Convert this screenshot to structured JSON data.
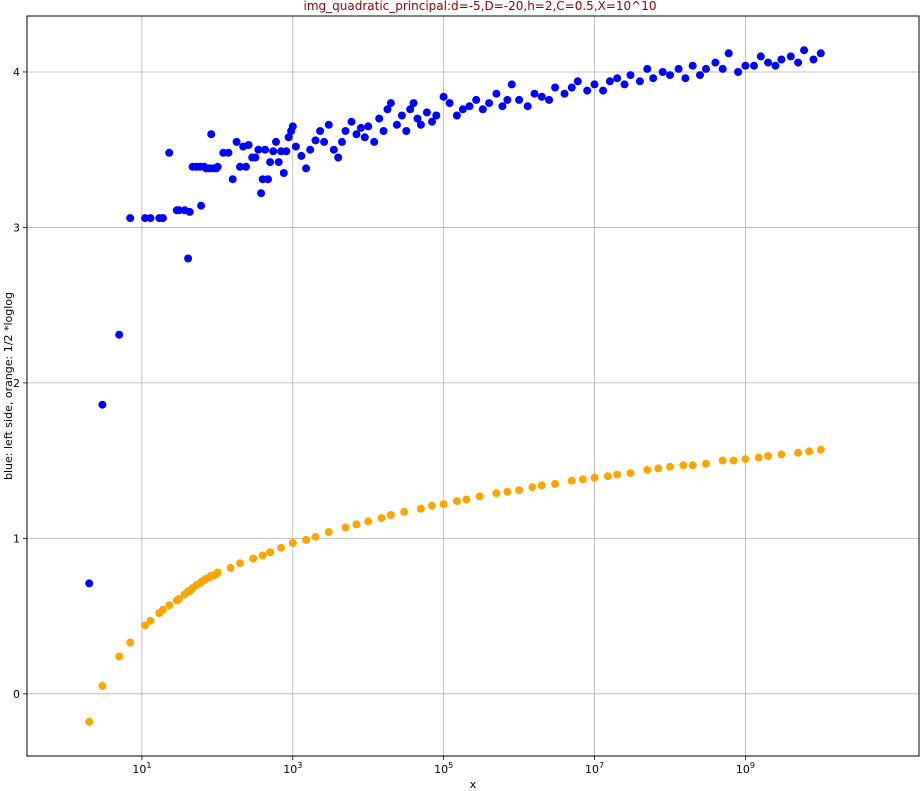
{
  "chart_data": {
    "type": "scatter",
    "title": "img_quadratic_principal:d=-5,D=-20,h=2,C=0.5,X=10^10",
    "title_color": "#8b0000",
    "xlabel": "x",
    "ylabel": "blue: left side, orange: 1/2 *loglog",
    "xscale": "log",
    "xlim": [
      0.3,
      200000000000
    ],
    "ylim": [
      -0.4,
      4.36
    ],
    "grid": true,
    "x_ticks": [
      {
        "value": 10,
        "base": "10",
        "exp": "1"
      },
      {
        "value": 1000,
        "base": "10",
        "exp": "3"
      },
      {
        "value": 100000,
        "base": "10",
        "exp": "5"
      },
      {
        "value": 10000000,
        "base": "10",
        "exp": "7"
      },
      {
        "value": 1000000000,
        "base": "10",
        "exp": "9"
      }
    ],
    "y_ticks": [
      {
        "value": 0,
        "label": "0"
      },
      {
        "value": 1,
        "label": "1"
      },
      {
        "value": 2,
        "label": "2"
      },
      {
        "value": 3,
        "label": "3"
      },
      {
        "value": 4,
        "label": "4"
      }
    ],
    "series": [
      {
        "color": "#0000ff",
        "points": [
          [
            2,
            0.71
          ],
          [
            3,
            1.86
          ],
          [
            5,
            2.31
          ],
          [
            7,
            3.06
          ],
          [
            11,
            3.06
          ],
          [
            13,
            3.06
          ],
          [
            17,
            3.06
          ],
          [
            19,
            3.06
          ],
          [
            23,
            3.48
          ],
          [
            29,
            3.11
          ],
          [
            31,
            3.11
          ],
          [
            37,
            3.11
          ],
          [
            41,
            2.8
          ],
          [
            43,
            3.1
          ],
          [
            47,
            3.39
          ],
          [
            53,
            3.39
          ],
          [
            59,
            3.39
          ],
          [
            61,
            3.14
          ],
          [
            67,
            3.39
          ],
          [
            71,
            3.38
          ],
          [
            79,
            3.38
          ],
          [
            83,
            3.6
          ],
          [
            89,
            3.38
          ],
          [
            97,
            3.38
          ],
          [
            101,
            3.39
          ],
          [
            120,
            3.48
          ],
          [
            140,
            3.48
          ],
          [
            160,
            3.31
          ],
          [
            180,
            3.55
          ],
          [
            200,
            3.39
          ],
          [
            220,
            3.52
          ],
          [
            240,
            3.39
          ],
          [
            260,
            3.53
          ],
          [
            290,
            3.45
          ],
          [
            320,
            3.45
          ],
          [
            350,
            3.5
          ],
          [
            380,
            3.22
          ],
          [
            400,
            3.31
          ],
          [
            430,
            3.5
          ],
          [
            470,
            3.31
          ],
          [
            500,
            3.42
          ],
          [
            550,
            3.49
          ],
          [
            600,
            3.55
          ],
          [
            650,
            3.42
          ],
          [
            700,
            3.49
          ],
          [
            760,
            3.35
          ],
          [
            820,
            3.49
          ],
          [
            880,
            3.58
          ],
          [
            950,
            3.62
          ],
          [
            1000,
            3.65
          ],
          [
            1100,
            3.52
          ],
          [
            1300,
            3.46
          ],
          [
            1500,
            3.38
          ],
          [
            1700,
            3.5
          ],
          [
            2000,
            3.56
          ],
          [
            2300,
            3.62
          ],
          [
            2600,
            3.55
          ],
          [
            3000,
            3.66
          ],
          [
            3500,
            3.5
          ],
          [
            4000,
            3.45
          ],
          [
            4500,
            3.55
          ],
          [
            5000,
            3.62
          ],
          [
            6000,
            3.68
          ],
          [
            7000,
            3.6
          ],
          [
            8000,
            3.64
          ],
          [
            9000,
            3.58
          ],
          [
            10000,
            3.65
          ],
          [
            12000,
            3.55
          ],
          [
            14000,
            3.7
          ],
          [
            16000,
            3.62
          ],
          [
            18000,
            3.76
          ],
          [
            20000,
            3.8
          ],
          [
            24000,
            3.66
          ],
          [
            28000,
            3.72
          ],
          [
            32000,
            3.62
          ],
          [
            36000,
            3.76
          ],
          [
            40000,
            3.8
          ],
          [
            45000,
            3.7
          ],
          [
            50000,
            3.66
          ],
          [
            60000,
            3.74
          ],
          [
            70000,
            3.68
          ],
          [
            80000,
            3.72
          ],
          [
            100000,
            3.84
          ],
          [
            120000,
            3.8
          ],
          [
            150000,
            3.72
          ],
          [
            180000,
            3.76
          ],
          [
            220000,
            3.78
          ],
          [
            270000,
            3.82
          ],
          [
            330000,
            3.76
          ],
          [
            400000,
            3.8
          ],
          [
            500000,
            3.86
          ],
          [
            600000,
            3.78
          ],
          [
            700000,
            3.82
          ],
          [
            800000,
            3.92
          ],
          [
            1000000,
            3.82
          ],
          [
            1300000,
            3.78
          ],
          [
            1600000,
            3.86
          ],
          [
            2000000,
            3.84
          ],
          [
            2500000,
            3.82
          ],
          [
            3000000,
            3.9
          ],
          [
            4000000,
            3.86
          ],
          [
            5000000,
            3.9
          ],
          [
            6000000,
            3.94
          ],
          [
            8000000,
            3.88
          ],
          [
            10000000,
            3.92
          ],
          [
            13000000,
            3.88
          ],
          [
            16000000,
            3.94
          ],
          [
            20000000,
            3.96
          ],
          [
            25000000,
            3.92
          ],
          [
            30000000,
            3.98
          ],
          [
            40000000,
            3.94
          ],
          [
            50000000,
            4.02
          ],
          [
            60000000,
            3.96
          ],
          [
            80000000,
            4.0
          ],
          [
            100000000,
            3.98
          ],
          [
            130000000,
            4.02
          ],
          [
            160000000,
            3.96
          ],
          [
            200000000,
            4.04
          ],
          [
            250000000,
            3.98
          ],
          [
            300000000,
            4.02
          ],
          [
            400000000,
            4.06
          ],
          [
            500000000,
            4.02
          ],
          [
            600000000,
            4.12
          ],
          [
            800000000,
            4.0
          ],
          [
            1000000000,
            4.04
          ],
          [
            1300000000,
            4.04
          ],
          [
            1600000000,
            4.1
          ],
          [
            2000000000,
            4.06
          ],
          [
            2500000000,
            4.04
          ],
          [
            3000000000,
            4.08
          ],
          [
            4000000000,
            4.1
          ],
          [
            5000000000,
            4.06
          ],
          [
            6000000000,
            4.14
          ],
          [
            8000000000,
            4.08
          ],
          [
            10000000000,
            4.12
          ]
        ]
      },
      {
        "color": "#ffa500",
        "points": [
          [
            2,
            -0.18
          ],
          [
            3,
            0.05
          ],
          [
            5,
            0.24
          ],
          [
            7,
            0.33
          ],
          [
            11,
            0.44
          ],
          [
            13,
            0.47
          ],
          [
            17,
            0.52
          ],
          [
            19,
            0.54
          ],
          [
            23,
            0.57
          ],
          [
            29,
            0.6
          ],
          [
            31,
            0.61
          ],
          [
            37,
            0.64
          ],
          [
            41,
            0.66
          ],
          [
            43,
            0.66
          ],
          [
            47,
            0.68
          ],
          [
            53,
            0.7
          ],
          [
            59,
            0.71
          ],
          [
            61,
            0.72
          ],
          [
            67,
            0.73
          ],
          [
            71,
            0.74
          ],
          [
            79,
            0.75
          ],
          [
            83,
            0.76
          ],
          [
            89,
            0.76
          ],
          [
            97,
            0.77
          ],
          [
            101,
            0.78
          ],
          [
            150,
            0.81
          ],
          [
            200,
            0.84
          ],
          [
            300,
            0.87
          ],
          [
            400,
            0.89
          ],
          [
            500,
            0.91
          ],
          [
            700,
            0.94
          ],
          [
            1000,
            0.97
          ],
          [
            1500,
            0.99
          ],
          [
            2000,
            1.01
          ],
          [
            3000,
            1.04
          ],
          [
            5000,
            1.07
          ],
          [
            7000,
            1.09
          ],
          [
            10000,
            1.11
          ],
          [
            15000,
            1.13
          ],
          [
            20000,
            1.15
          ],
          [
            30000,
            1.17
          ],
          [
            50000,
            1.19
          ],
          [
            70000,
            1.21
          ],
          [
            100000,
            1.22
          ],
          [
            150000,
            1.24
          ],
          [
            200000,
            1.25
          ],
          [
            300000,
            1.27
          ],
          [
            500000,
            1.29
          ],
          [
            700000,
            1.3
          ],
          [
            1000000,
            1.31
          ],
          [
            1500000,
            1.33
          ],
          [
            2000000,
            1.34
          ],
          [
            3000000,
            1.35
          ],
          [
            5000000,
            1.37
          ],
          [
            7000000,
            1.38
          ],
          [
            10000000,
            1.39
          ],
          [
            15000000,
            1.4
          ],
          [
            20000000,
            1.41
          ],
          [
            30000000,
            1.42
          ],
          [
            50000000,
            1.44
          ],
          [
            70000000,
            1.45
          ],
          [
            100000000,
            1.46
          ],
          [
            150000000,
            1.47
          ],
          [
            200000000,
            1.47
          ],
          [
            300000000,
            1.48
          ],
          [
            500000000,
            1.5
          ],
          [
            700000000,
            1.5
          ],
          [
            1000000000,
            1.51
          ],
          [
            1500000000,
            1.52
          ],
          [
            2000000000,
            1.53
          ],
          [
            3000000000,
            1.54
          ],
          [
            5000000000,
            1.55
          ],
          [
            7000000000,
            1.56
          ],
          [
            10000000000,
            1.57
          ]
        ]
      }
    ]
  }
}
